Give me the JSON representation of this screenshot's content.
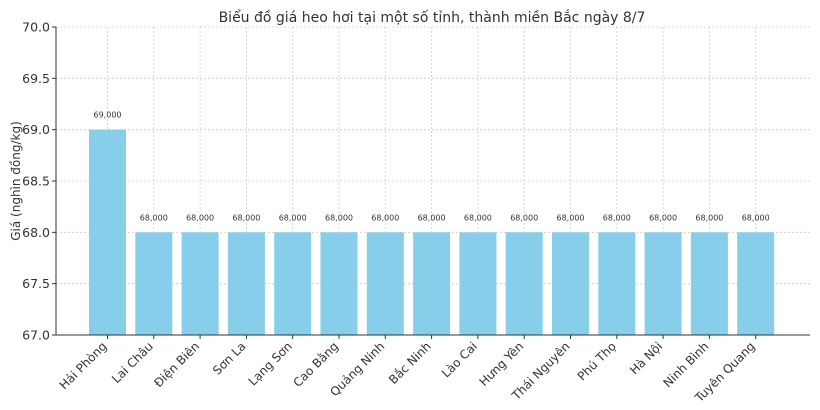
{
  "chart_data": {
    "type": "bar",
    "title": "Biểu đồ giá heo hơi tại một số tỉnh, thành miền Bắc ngày 8/7",
    "xlabel": "",
    "ylabel": "Giá (nghìn đồng/kg)",
    "ylim": [
      67.0,
      70.0
    ],
    "yticks": [
      "67.0",
      "67.5",
      "68.0",
      "68.5",
      "69.0",
      "69.5",
      "70.0"
    ],
    "grid": true,
    "bar_color": "#87ceeb",
    "categories": [
      "Hải Phòng",
      "Lai Châu",
      "Điện Biên",
      "Sơn La",
      "Lạng Sơn",
      "Cao Bằng",
      "Quảng Ninh",
      "Bắc Ninh",
      "Lào Cai",
      "Hưng Yên",
      "Thái Nguyên",
      "Phú Thọ",
      "Hà Nội",
      "Ninh Bình",
      "Tuyên Quang"
    ],
    "values": [
      69.0,
      68.0,
      68.0,
      68.0,
      68.0,
      68.0,
      68.0,
      68.0,
      68.0,
      68.0,
      68.0,
      68.0,
      68.0,
      68.0,
      68.0
    ],
    "data_labels": [
      "69,000",
      "68,000",
      "68,000",
      "68,000",
      "68,000",
      "68,000",
      "68,000",
      "68,000",
      "68,000",
      "68,000",
      "68,000",
      "68,000",
      "68,000",
      "68,000",
      "68,000"
    ]
  }
}
